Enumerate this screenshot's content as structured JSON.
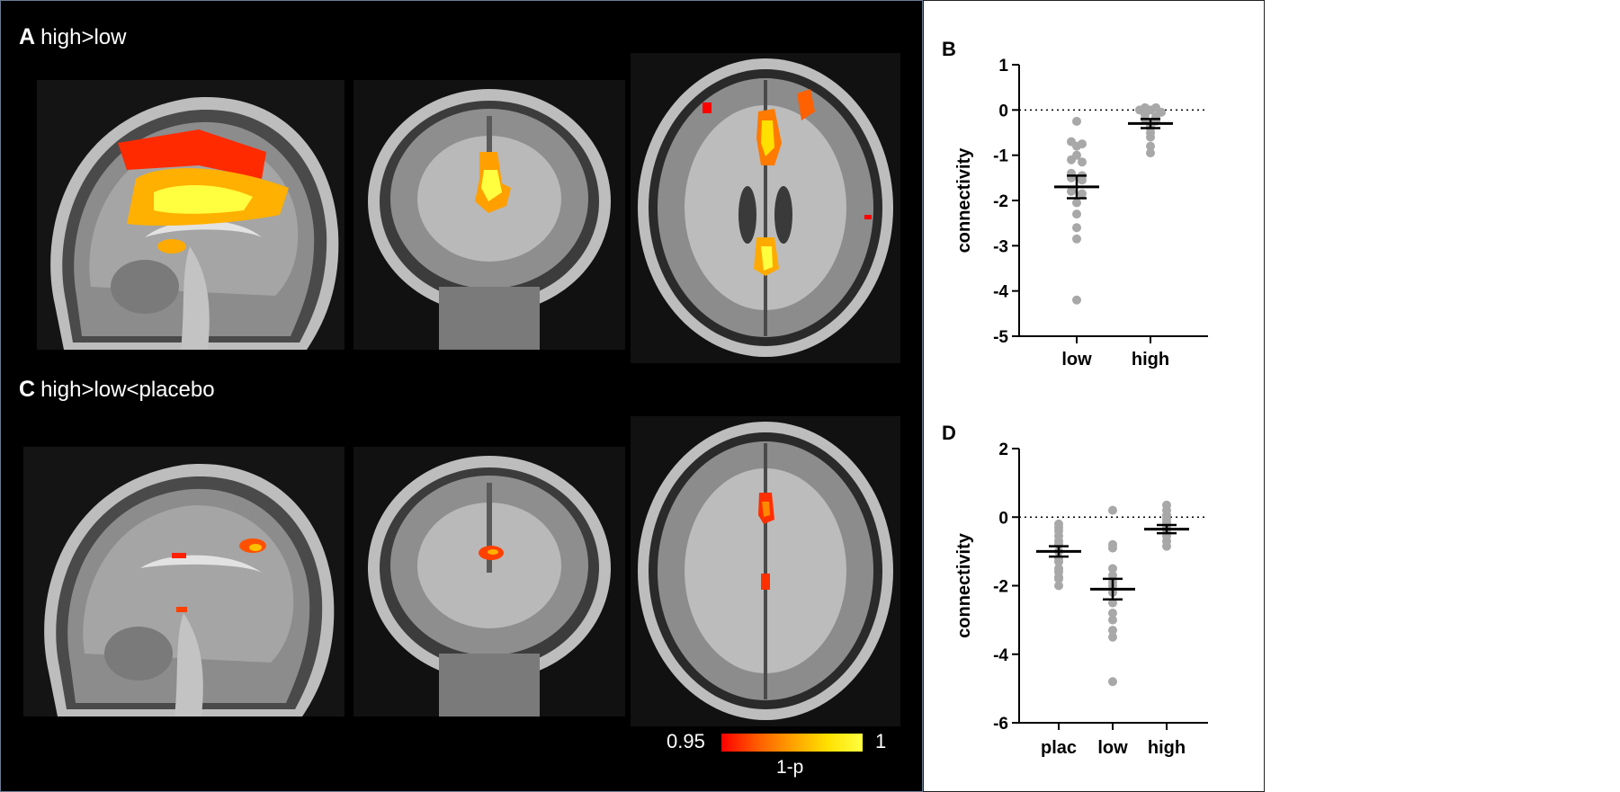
{
  "panels": {
    "A": {
      "letter": "A",
      "title": "high>low"
    },
    "C": {
      "letter": "C",
      "title": "high>low<placebo"
    }
  },
  "colorbar": {
    "min_label": "0.95",
    "max_label": "1",
    "title": "1-p",
    "colors": [
      "#ff0000",
      "#ffa000",
      "#ffff40"
    ]
  },
  "chart_data": [
    {
      "type": "scatter",
      "panel_label": "B",
      "ylabel": "connectivity",
      "xlabel": "",
      "categories": [
        "low",
        "high"
      ],
      "ylim": [
        -5,
        1
      ],
      "yticks": [
        1,
        0,
        -1,
        -2,
        -3,
        -4,
        -5
      ],
      "reference_line": 0,
      "grid": false,
      "point_color": "#a8a8a8",
      "series": [
        {
          "category": "low",
          "mean": -1.7,
          "sem": 0.25,
          "values": [
            -0.25,
            -0.7,
            -0.75,
            -0.8,
            -1.0,
            -1.1,
            -1.15,
            -1.4,
            -1.45,
            -1.5,
            -1.55,
            -1.8,
            -1.85,
            -2.05,
            -2.3,
            -2.6,
            -2.85,
            -4.2
          ]
        },
        {
          "category": "high",
          "mean": -0.3,
          "sem": 0.1,
          "values": [
            0.05,
            0.05,
            0.0,
            0.0,
            -0.05,
            -0.1,
            -0.15,
            -0.2,
            -0.25,
            -0.35,
            -0.4,
            -0.5,
            -0.6,
            -0.8,
            -0.95
          ]
        }
      ]
    },
    {
      "type": "scatter",
      "panel_label": "D",
      "ylabel": "connectivity",
      "xlabel": "",
      "categories": [
        "plac",
        "low",
        "high"
      ],
      "ylim": [
        -6,
        2
      ],
      "yticks": [
        2,
        0,
        -2,
        -4,
        -6
      ],
      "reference_line": 0,
      "grid": false,
      "point_color": "#a8a8a8",
      "series": [
        {
          "category": "plac",
          "mean": -1.0,
          "sem": 0.15,
          "values": [
            -0.2,
            -0.3,
            -0.4,
            -0.55,
            -0.7,
            -0.8,
            -1.0,
            -1.2,
            -1.3,
            -1.5,
            -1.6,
            -1.75,
            -1.8,
            -2.0
          ]
        },
        {
          "category": "low",
          "mean": -2.1,
          "sem": 0.3,
          "values": [
            0.2,
            -0.8,
            -0.9,
            -1.5,
            -1.7,
            -1.9,
            -2.0,
            -2.2,
            -2.5,
            -2.8,
            -3.0,
            -3.3,
            -3.5,
            -4.8
          ]
        },
        {
          "category": "high",
          "mean": -0.35,
          "sem": 0.12,
          "values": [
            0.35,
            0.2,
            0.05,
            -0.05,
            -0.15,
            -0.3,
            -0.45,
            -0.55,
            -0.7,
            -0.85
          ]
        }
      ]
    }
  ]
}
